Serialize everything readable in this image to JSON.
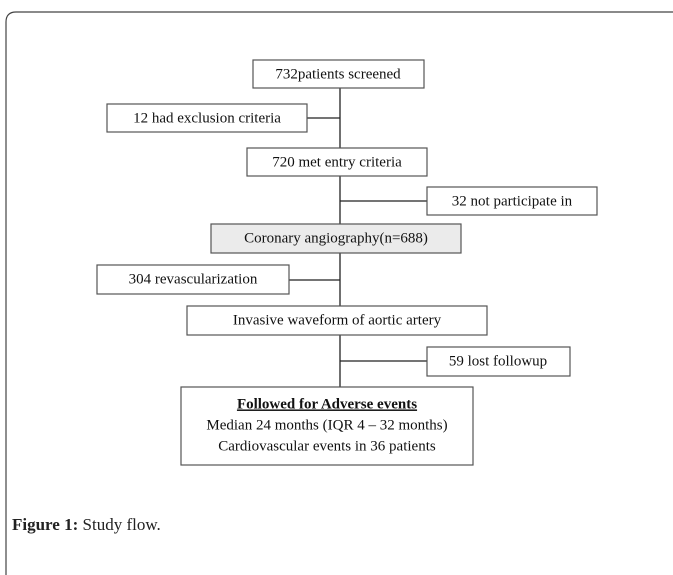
{
  "nodes": [
    {
      "label": "732patients screened"
    },
    {
      "label": "12 had exclusion criteria"
    },
    {
      "label": "720 met entry criteria"
    },
    {
      "label": "32 not participate in"
    },
    {
      "label": "Coronary angiography(n=688)"
    },
    {
      "label": "304 revascularization"
    },
    {
      "label": "Invasive waveform of aortic artery"
    },
    {
      "label": "59 lost followup"
    }
  ],
  "final_box": {
    "title": "Followed for Adverse events",
    "lines": [
      "Median 24 months (IQR 4 – 32 months)",
      "Cardiovascular events in 36 patients"
    ]
  },
  "caption": {
    "label": "Figure 1:",
    "text": "Study flow."
  }
}
